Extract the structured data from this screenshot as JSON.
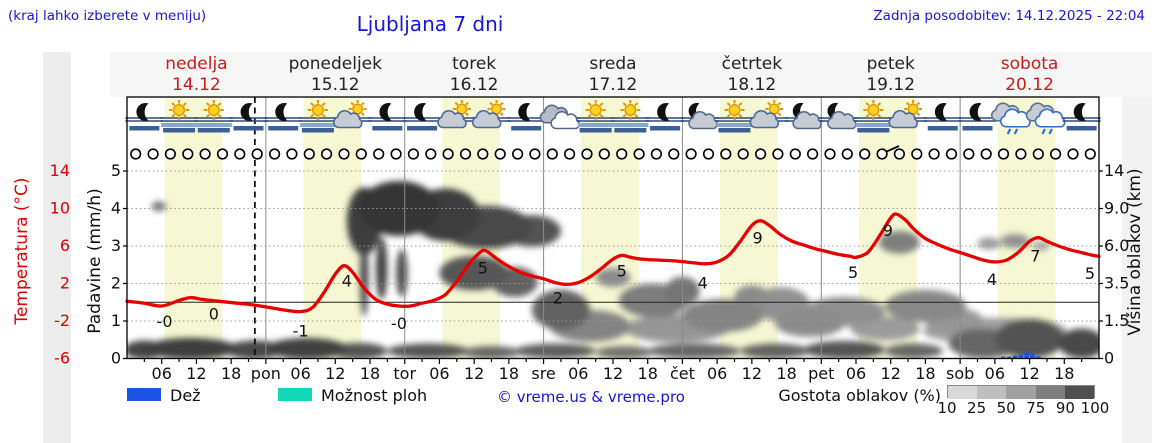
{
  "page": {
    "note_left": "(kraj lahko izberete v meniju)",
    "title": "Ljubljana 7 dni",
    "updated": "Zadnja posodobitev: 14.12.2025 - 22:04"
  },
  "days": [
    {
      "name": "nedelja",
      "date": "14.12",
      "weekend": true
    },
    {
      "name": "ponedeljek",
      "date": "15.12",
      "weekend": false
    },
    {
      "name": "torek",
      "date": "16.12",
      "weekend": false
    },
    {
      "name": "sreda",
      "date": "17.12",
      "weekend": false
    },
    {
      "name": "četrtek",
      "date": "18.12",
      "weekend": false
    },
    {
      "name": "petek",
      "date": "19.12",
      "weekend": false
    },
    {
      "name": "sobota",
      "date": "20.12",
      "weekend": true
    }
  ],
  "axes": {
    "temp_label": "Temperatura (°C)",
    "temp_ticks": [
      "14",
      "10",
      "6",
      "2",
      "-2",
      "-6"
    ],
    "precip_label": "Padavine (mm/h)",
    "precip_ticks": [
      "5",
      "4",
      "3",
      "2",
      "1",
      "0"
    ],
    "cloud_label": "Višina oblakov (km)",
    "cloud_ticks": [
      "14",
      "9.0",
      "6.0",
      "3.5",
      "1.5",
      "0"
    ],
    "x_ticks": [
      "06",
      "12",
      "18",
      "pon",
      "06",
      "12",
      "18",
      "tor",
      "06",
      "12",
      "18",
      "sre",
      "06",
      "12",
      "18",
      "čet",
      "06",
      "12",
      "18",
      "pet",
      "06",
      "12",
      "18",
      "sob",
      "06",
      "12",
      "18"
    ]
  },
  "legend": {
    "rain_label": "Dež",
    "showers_label": "Možnost ploh",
    "copyright": "© vreme.us & vreme.pro",
    "density_label": "Gostota oblakov (%)",
    "density_ticks": [
      "10",
      "25",
      "50",
      "75",
      "90",
      "100"
    ],
    "rain_color": "#1d52e6",
    "showers_color": "#12d7b9",
    "density_colors": [
      "#d9d9d9",
      "#bfbfbf",
      "#a1a1a1",
      "#7f7f7f",
      "#4f4f4f"
    ]
  },
  "icons": [
    "moon-fog",
    "sun-fog",
    "sun-fog",
    "moon-fog",
    "moon-fog",
    "sun-fog",
    "sun-cloud",
    "moon-fog",
    "moon-fog",
    "sun-cloud",
    "sun-cloud",
    "moon-fog",
    "cloudy",
    "sun-fog",
    "sun-fog",
    "moon-fog",
    "moon-cloud",
    "sun-fog",
    "sun-cloud",
    "moon-cloud",
    "moon-cloud",
    "sun-fog",
    "sun-cloud",
    "moon-fog",
    "moon-fog",
    "rain",
    "rain",
    "moon-fog"
  ],
  "wind_row": {
    "symbol": "calm-circle",
    "count": 56,
    "barb_index": 43
  },
  "chart_data": {
    "type": "line",
    "title": "Ljubljana 7 dni",
    "x_hours_range": [
      0,
      168
    ],
    "temp_axis": {
      "label": "Temperatura (°C)",
      "range": [
        -6,
        14
      ],
      "color": "#e60000"
    },
    "precip_axis": {
      "label": "Padavine (mm/h)",
      "range": [
        0,
        5
      ]
    },
    "cloud_axis": {
      "label": "Višina oblakov (km)",
      "ticks_km": [
        0,
        1.5,
        3.5,
        6.0,
        9.0,
        14
      ]
    },
    "daytime_hours": [
      6.5,
      16.5
    ],
    "current_time_hour": 22.1,
    "freezing_level_c": 0,
    "temperature": {
      "x": [
        0,
        3,
        6,
        9,
        11,
        13,
        16,
        19,
        22,
        25,
        28,
        30,
        32,
        34,
        36,
        37.5,
        39,
        41,
        43,
        45,
        47,
        49,
        51,
        53,
        55,
        57,
        59,
        61,
        62,
        64,
        66,
        68,
        70,
        72,
        74,
        76,
        78,
        80,
        82,
        84,
        85.5,
        87,
        89,
        92,
        95,
        98,
        100,
        102,
        104,
        106,
        108,
        109.5,
        111,
        113,
        115,
        117,
        119,
        121,
        123,
        125,
        126,
        128,
        130,
        132,
        133,
        134.5,
        136,
        138,
        140,
        142,
        144,
        146,
        148,
        150,
        152,
        154,
        156,
        157.5,
        159,
        161,
        163,
        165,
        167,
        168
      ],
      "y": [
        0.1,
        -0.1,
        -0.4,
        0.2,
        0.5,
        0.3,
        0.1,
        -0.1,
        -0.3,
        -0.6,
        -0.9,
        -1.0,
        -0.6,
        1.0,
        3.0,
        3.9,
        3.2,
        1.5,
        0.3,
        -0.2,
        -0.4,
        -0.4,
        -0.1,
        0.2,
        0.8,
        2.2,
        4.0,
        5.3,
        5.5,
        4.6,
        3.8,
        3.2,
        2.8,
        2.5,
        2.1,
        1.9,
        2.1,
        2.7,
        3.6,
        4.6,
        5.0,
        4.8,
        4.6,
        4.5,
        4.4,
        4.2,
        4.1,
        4.3,
        5.0,
        6.5,
        8.2,
        8.7,
        8.2,
        7.2,
        6.5,
        6.1,
        5.7,
        5.4,
        5.1,
        4.9,
        4.8,
        5.3,
        7.0,
        9.0,
        9.4,
        8.8,
        7.8,
        6.8,
        6.2,
        5.7,
        5.3,
        4.9,
        4.5,
        4.3,
        4.5,
        5.3,
        6.5,
        6.9,
        6.5,
        6.0,
        5.6,
        5.3,
        5.0,
        4.9
      ]
    },
    "temp_labels": [
      {
        "x": 6.5,
        "label": "-0",
        "t": -2.1
      },
      {
        "x": 15,
        "label": "0",
        "t": -1.3
      },
      {
        "x": 30,
        "label": "-1",
        "t": -3.1
      },
      {
        "x": 38,
        "label": "4",
        "t": 2.2
      },
      {
        "x": 47,
        "label": "-0",
        "t": -2.3
      },
      {
        "x": 61.5,
        "label": "5",
        "t": 3.6
      },
      {
        "x": 74.5,
        "label": "2",
        "t": 0.4
      },
      {
        "x": 85.5,
        "label": "5",
        "t": 3.3
      },
      {
        "x": 99.5,
        "label": "4",
        "t": 2.0
      },
      {
        "x": 109,
        "label": "9",
        "t": 6.8
      },
      {
        "x": 125.5,
        "label": "5",
        "t": 3.1
      },
      {
        "x": 131.5,
        "label": "9",
        "t": 7.6
      },
      {
        "x": 149.5,
        "label": "4",
        "t": 2.4
      },
      {
        "x": 157,
        "label": "7",
        "t": 4.9
      },
      {
        "x": 167.3,
        "label": "5",
        "t": 3.0
      }
    ],
    "rain_mmh": [
      {
        "x": 151.5,
        "v": 0.05
      },
      {
        "x": 152.5,
        "v": 0.05
      },
      {
        "x": 153.5,
        "v": 0.08
      },
      {
        "x": 154.5,
        "v": 0.1
      },
      {
        "x": 155.5,
        "v": 0.16
      },
      {
        "x": 156.5,
        "v": 0.12
      },
      {
        "x": 157.5,
        "v": 0.06
      }
    ],
    "clouds": [
      {
        "x": 3,
        "km": 0.35,
        "wh": 7,
        "tk": 0.8,
        "d": 88
      },
      {
        "x": 11,
        "km": 0.4,
        "wh": 16,
        "tk": 0.9,
        "d": 92
      },
      {
        "x": 22,
        "km": 0.35,
        "wh": 10,
        "tk": 0.8,
        "d": 85
      },
      {
        "x": 31,
        "km": 0.4,
        "wh": 14,
        "tk": 0.9,
        "d": 90
      },
      {
        "x": 40,
        "km": 0.3,
        "wh": 10,
        "tk": 0.7,
        "d": 80
      },
      {
        "x": 52,
        "km": 0.3,
        "wh": 14,
        "tk": 0.6,
        "d": 80
      },
      {
        "x": 63,
        "km": 0.25,
        "wh": 10,
        "tk": 0.5,
        "d": 70
      },
      {
        "x": 74,
        "km": 0.3,
        "wh": 14,
        "tk": 0.6,
        "d": 75
      },
      {
        "x": 86,
        "km": 0.25,
        "wh": 10,
        "tk": 0.5,
        "d": 65
      },
      {
        "x": 98,
        "km": 0.3,
        "wh": 16,
        "tk": 0.6,
        "d": 70
      },
      {
        "x": 112,
        "km": 0.3,
        "wh": 12,
        "tk": 0.6,
        "d": 72
      },
      {
        "x": 124,
        "km": 0.35,
        "wh": 14,
        "tk": 0.7,
        "d": 80
      },
      {
        "x": 136,
        "km": 0.3,
        "wh": 10,
        "tk": 0.6,
        "d": 70
      },
      {
        "x": 148,
        "km": 0.6,
        "wh": 12,
        "tk": 1.2,
        "d": 70
      },
      {
        "x": 156,
        "km": 0.8,
        "wh": 12,
        "tk": 1.6,
        "d": 80
      },
      {
        "x": 165,
        "km": 0.6,
        "wh": 8,
        "tk": 1.2,
        "d": 85
      },
      {
        "x": 5.5,
        "km": 9.3,
        "wh": 2.5,
        "tk": 1.1,
        "d": 65
      },
      {
        "x": 41,
        "km": 8,
        "wh": 6,
        "tk": 6,
        "d": 92
      },
      {
        "x": 47,
        "km": 9,
        "wh": 14,
        "tk": 5.5,
        "d": 96
      },
      {
        "x": 55,
        "km": 8.5,
        "wh": 12,
        "tk": 5,
        "d": 92
      },
      {
        "x": 62,
        "km": 7.5,
        "wh": 16,
        "tk": 3.5,
        "d": 85
      },
      {
        "x": 70,
        "km": 7.2,
        "wh": 10,
        "tk": 2.5,
        "d": 80
      },
      {
        "x": 44,
        "km": 4.5,
        "wh": 2,
        "tk": 4,
        "d": 88
      },
      {
        "x": 41,
        "km": 4,
        "wh": 1.5,
        "tk": 5,
        "d": 85
      },
      {
        "x": 47.5,
        "km": 4.2,
        "wh": 2,
        "tk": 3,
        "d": 80
      },
      {
        "x": 60,
        "km": 4.2,
        "wh": 12,
        "tk": 2.2,
        "d": 78
      },
      {
        "x": 67,
        "km": 3.6,
        "wh": 8,
        "tk": 1.8,
        "d": 72
      },
      {
        "x": 75,
        "km": 2.1,
        "wh": 10,
        "tk": 2,
        "d": 72
      },
      {
        "x": 80,
        "km": 1.3,
        "wh": 14,
        "tk": 1.4,
        "d": 55
      },
      {
        "x": 84,
        "km": 3.9,
        "wh": 6,
        "tk": 1.2,
        "d": 50
      },
      {
        "x": 91,
        "km": 2.6,
        "wh": 12,
        "tk": 1.8,
        "d": 58
      },
      {
        "x": 96,
        "km": 3.1,
        "wh": 6,
        "tk": 1.6,
        "d": 62
      },
      {
        "x": 95,
        "km": 1.2,
        "wh": 18,
        "tk": 1.2,
        "d": 45
      },
      {
        "x": 103,
        "km": 1.8,
        "wh": 14,
        "tk": 1.6,
        "d": 55
      },
      {
        "x": 108,
        "km": 2.8,
        "wh": 6,
        "tk": 1.2,
        "d": 50
      },
      {
        "x": 113,
        "km": 2.4,
        "wh": 10,
        "tk": 1.8,
        "d": 48
      },
      {
        "x": 118,
        "km": 1.4,
        "wh": 12,
        "tk": 1.2,
        "d": 50
      },
      {
        "x": 124,
        "km": 2.0,
        "wh": 14,
        "tk": 1.5,
        "d": 48
      },
      {
        "x": 131,
        "km": 1.2,
        "wh": 12,
        "tk": 1.0,
        "d": 42
      },
      {
        "x": 133.5,
        "km": 6.3,
        "wh": 7,
        "tk": 1.7,
        "d": 58
      },
      {
        "x": 138,
        "km": 2.3,
        "wh": 14,
        "tk": 1.7,
        "d": 52
      },
      {
        "x": 143,
        "km": 1.5,
        "wh": 10,
        "tk": 1.2,
        "d": 45
      },
      {
        "x": 149,
        "km": 6.2,
        "wh": 4,
        "tk": 0.9,
        "d": 42
      },
      {
        "x": 153.5,
        "km": 6.4,
        "wh": 5,
        "tk": 1.1,
        "d": 48
      },
      {
        "x": 158,
        "km": 6.0,
        "wh": 3,
        "tk": 0.7,
        "d": 35
      },
      {
        "x": 150,
        "km": 1.1,
        "wh": 25,
        "tk": 1.1,
        "d": 40
      }
    ]
  }
}
